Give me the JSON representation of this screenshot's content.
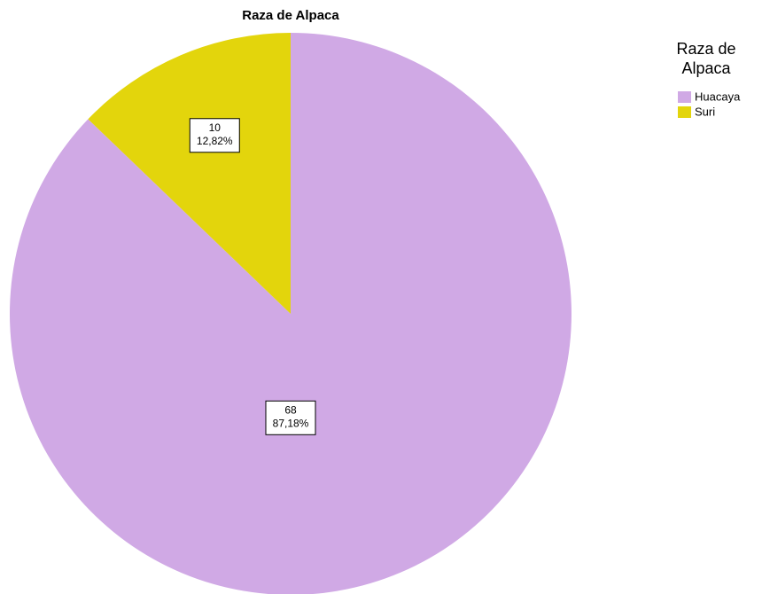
{
  "chart_data": {
    "type": "pie",
    "title": "Raza de Alpaca",
    "legend_title": "Raza de Alpaca",
    "categories": [
      "Huacaya",
      "Suri"
    ],
    "values": [
      68,
      10
    ],
    "percent_labels": [
      "87,18%",
      "12,82%"
    ],
    "colors": [
      "#d0a9e5",
      "#e3d50c"
    ],
    "legend": "top-right"
  }
}
